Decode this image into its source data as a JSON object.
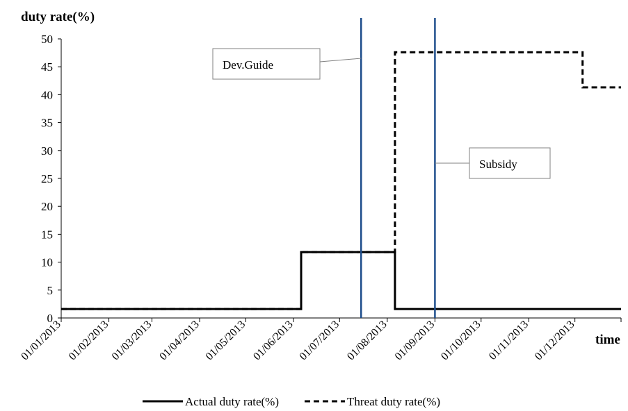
{
  "chart_data": {
    "type": "line",
    "title": "",
    "ylabel": "duty rate(%)",
    "xlabel": "time",
    "ylim": [
      0,
      50
    ],
    "yticks": [
      0,
      5,
      10,
      15,
      20,
      25,
      30,
      35,
      40,
      45,
      50
    ],
    "xlim": [
      "2013-01-01",
      "2013-12-31"
    ],
    "x_tick_labels": [
      "01/01/2013",
      "01/02/2013",
      "01/03/2013",
      "01/04/2013",
      "01/05/2013",
      "01/06/2013",
      "01/07/2013",
      "01/08/2013",
      "01/09/2013",
      "01/10/2013",
      "01/11/2013",
      "01/12/2013"
    ],
    "grid": false,
    "legend_position": "bottom",
    "series": [
      {
        "name": "Actual duty rate(%)",
        "style": "solid",
        "color": "#000000",
        "x": [
          "2013-01-01",
          "2013-06-06",
          "2013-06-06",
          "2013-08-06",
          "2013-08-06",
          "2013-12-31"
        ],
        "y": [
          1.6,
          1.6,
          11.8,
          11.8,
          1.6,
          1.6
        ]
      },
      {
        "name": "Threat duty rate(%)",
        "style": "dashed",
        "color": "#000000",
        "x": [
          "2013-01-01",
          "2013-06-06",
          "2013-06-06",
          "2013-08-06",
          "2013-08-06",
          "2013-12-06",
          "2013-12-06",
          "2013-12-31"
        ],
        "y": [
          1.6,
          1.6,
          11.8,
          11.8,
          47.6,
          47.6,
          41.3,
          41.3
        ]
      }
    ],
    "events": [
      {
        "label": "Dev.Guide",
        "date": "2013-07-15",
        "color": "#1f4e8c"
      },
      {
        "label": "Subsidy",
        "date": "2013-09-01",
        "color": "#1f4e8c"
      }
    ]
  }
}
